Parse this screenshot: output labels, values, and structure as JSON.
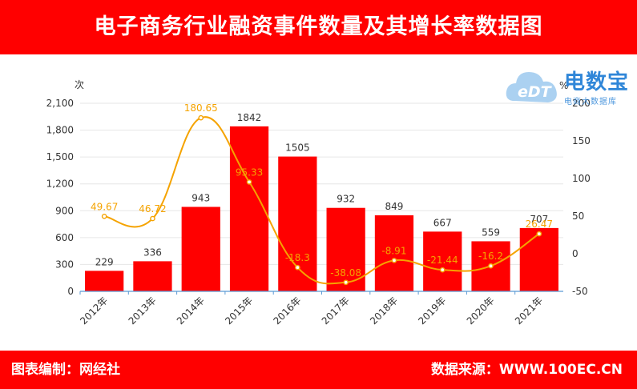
{
  "header": {
    "title": "电子商务行业融资事件数量及其增长率数据图"
  },
  "footer": {
    "left": "图表编制：网经社",
    "right": "数据来源：WWW.100EC.CN"
  },
  "logo": {
    "name": "电数宝",
    "sub": "电商大数据库",
    "mark": "eDT",
    "icon": "cloud-icon"
  },
  "colors": {
    "bar": "#ff0000",
    "line": "#f5a300",
    "banner": "#ff0000",
    "logo": "#2f86d8"
  },
  "chart_data": {
    "type": "bar",
    "categories": [
      "2012年",
      "2013年",
      "2014年",
      "2015年",
      "2016年",
      "2017年",
      "2018年",
      "2019年",
      "2020年",
      "2021年"
    ],
    "series": [
      {
        "type": "bar",
        "axis": "left",
        "values": [
          229,
          336,
          943,
          1842,
          1505,
          932,
          849,
          667,
          559,
          707
        ]
      },
      {
        "type": "line",
        "axis": "right",
        "values": [
          49.67,
          46.72,
          180.65,
          95.33,
          -18.3,
          -38.08,
          -8.91,
          -21.44,
          -16.2,
          26.47
        ]
      }
    ],
    "ylabel": "次",
    "ylim": [
      0,
      2100
    ],
    "yticks": [
      "0",
      "300",
      "600",
      "900",
      "1,200",
      "1,500",
      "1,800",
      "2,100"
    ],
    "y2label": "%",
    "y2lim": [
      -50,
      200
    ],
    "y2ticks": [
      "-50",
      "0",
      "50",
      "100",
      "150",
      "200"
    ],
    "grid": true
  }
}
